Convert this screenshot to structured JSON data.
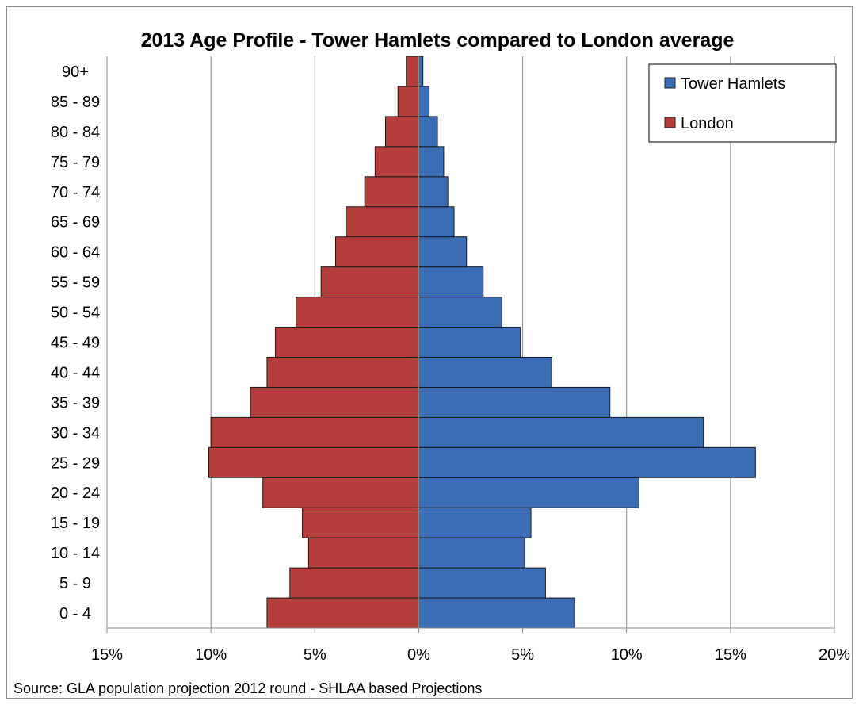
{
  "chart_data": {
    "type": "bar",
    "orientation": "horizontal",
    "title": "2013 Age Profile - Tower Hamlets compared to London average",
    "categories": [
      "0 - 4",
      "5 - 9",
      "10 - 14",
      "15 - 19",
      "20 - 24",
      "25 - 29",
      "30 - 34",
      "35 - 39",
      "40 - 44",
      "45 - 49",
      "50 - 54",
      "55 - 59",
      "60 - 64",
      "65 - 69",
      "70 - 74",
      "75 - 79",
      "80 - 84",
      "85 - 89",
      "90+"
    ],
    "series": [
      {
        "name": "Tower Hamlets",
        "color": "#3a6db5",
        "direction": "right",
        "values": [
          7.5,
          6.1,
          5.1,
          5.4,
          10.6,
          16.2,
          13.7,
          9.2,
          6.4,
          4.9,
          4.0,
          3.1,
          2.3,
          1.7,
          1.4,
          1.2,
          0.9,
          0.5,
          0.2
        ]
      },
      {
        "name": "London",
        "color": "#b53e3b",
        "direction": "left",
        "values": [
          7.3,
          6.2,
          5.3,
          5.6,
          7.5,
          10.1,
          10.0,
          8.1,
          7.3,
          6.9,
          5.9,
          4.7,
          4.0,
          3.5,
          2.6,
          2.1,
          1.6,
          1.0,
          0.6
        ]
      }
    ],
    "x_tick_labels": [
      "15%",
      "10%",
      "5%",
      "0%",
      "5%",
      "10%",
      "15%",
      "20%"
    ],
    "x_range": [
      -15,
      20
    ],
    "x_tick_step": 5,
    "grid": true,
    "legend_position": "top-right",
    "source": "Source: GLA population projection 2012 round - SHLAA based Projections"
  }
}
